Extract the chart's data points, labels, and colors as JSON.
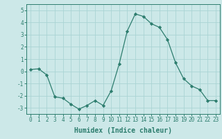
{
  "x": [
    0,
    1,
    2,
    3,
    4,
    5,
    6,
    7,
    8,
    9,
    10,
    11,
    12,
    13,
    14,
    15,
    16,
    17,
    18,
    19,
    20,
    21,
    22,
    23
  ],
  "y": [
    0.15,
    0.2,
    -0.3,
    -2.1,
    -2.2,
    -2.7,
    -3.1,
    -2.8,
    -2.4,
    -2.8,
    -1.6,
    0.6,
    3.3,
    4.7,
    4.5,
    3.9,
    3.6,
    2.6,
    0.7,
    -0.6,
    -1.2,
    -1.5,
    -2.4,
    -2.4
  ],
  "line_color": "#2d7d6e",
  "marker": "D",
  "marker_size": 2.2,
  "bg_color": "#cce8e8",
  "grid_color": "#aad4d4",
  "xlabel": "Humidex (Indice chaleur)",
  "ylim": [
    -3.5,
    5.5
  ],
  "xlim": [
    -0.5,
    23.5
  ],
  "yticks": [
    -3,
    -2,
    -1,
    0,
    1,
    2,
    3,
    4,
    5
  ],
  "xticks": [
    0,
    1,
    2,
    3,
    4,
    5,
    6,
    7,
    8,
    9,
    10,
    11,
    12,
    13,
    14,
    15,
    16,
    17,
    18,
    19,
    20,
    21,
    22,
    23
  ],
  "tick_color": "#2d7d6e",
  "label_fontsize": 7.0,
  "tick_fontsize": 5.5
}
